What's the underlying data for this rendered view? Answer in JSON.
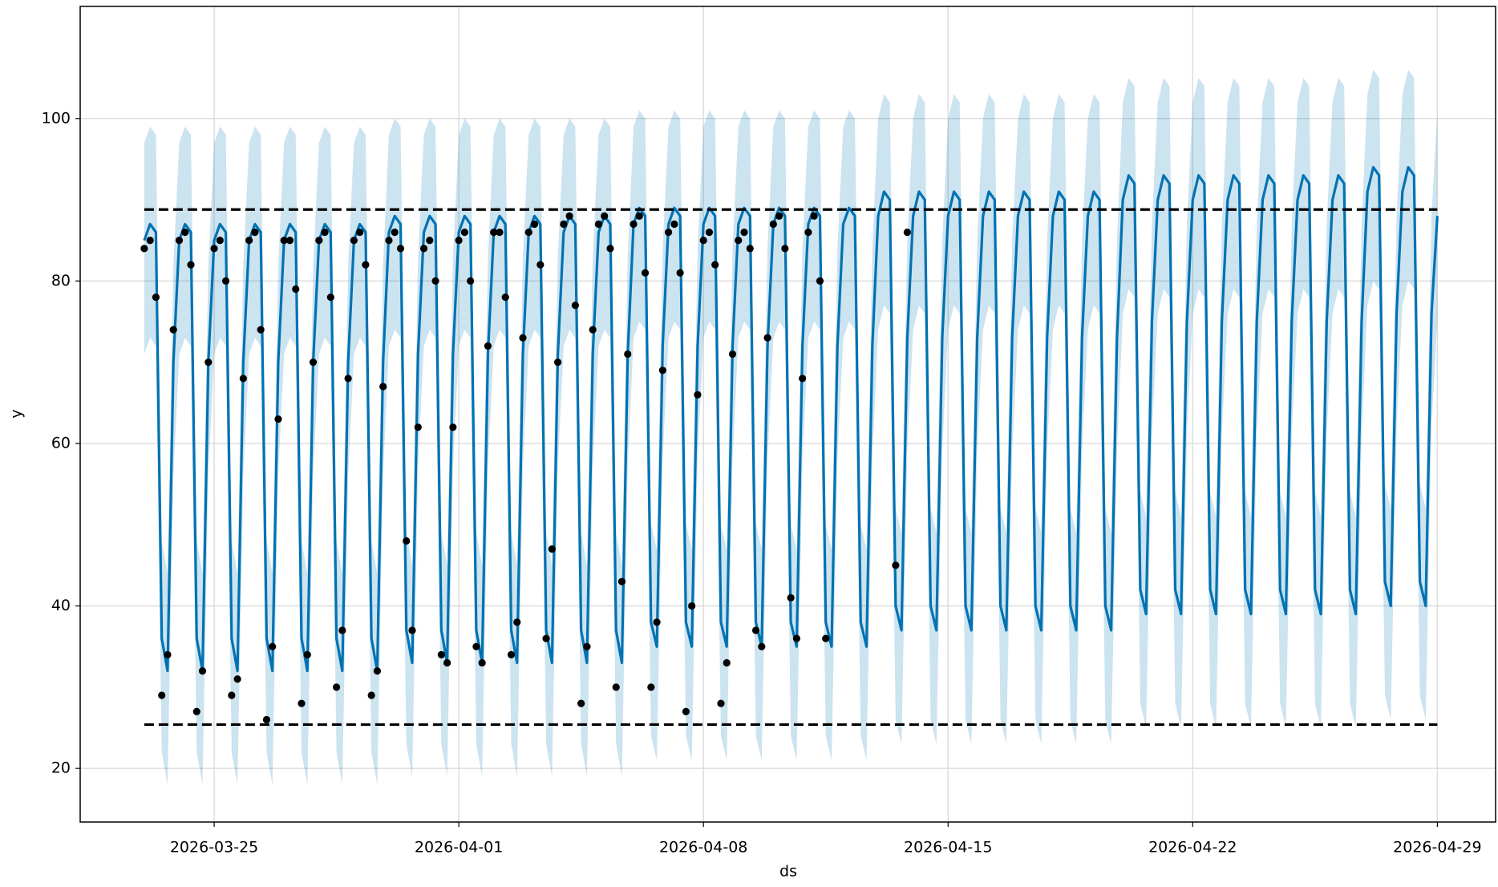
{
  "chart_data": {
    "type": "line",
    "x_label": "ds",
    "y_label": "y",
    "xlim": [
      "2026-03-21 04:00",
      "2026-04-30 16:00"
    ],
    "xticks": [
      "2026-03-25",
      "2026-04-01",
      "2026-04-08",
      "2026-04-15",
      "2026-04-22",
      "2026-04-29"
    ],
    "ylim": [
      13.4,
      113.8
    ],
    "yticks": [
      20,
      40,
      60,
      80,
      100
    ],
    "grid": true,
    "cap": 88.8,
    "floor": 25.4,
    "x": [
      "2026-03-23 00:00",
      "2026-03-23 04:00",
      "2026-03-23 08:00",
      "2026-03-23 12:00",
      "2026-03-23 16:00",
      "2026-03-23 20:00",
      "2026-03-24 00:00",
      "2026-03-24 04:00",
      "2026-03-24 08:00",
      "2026-03-24 12:00",
      "2026-03-24 16:00",
      "2026-03-24 20:00",
      "2026-03-25 00:00",
      "2026-03-25 04:00",
      "2026-03-25 08:00",
      "2026-03-25 12:00",
      "2026-03-25 16:00",
      "2026-03-25 20:00",
      "2026-03-26 00:00",
      "2026-03-26 04:00",
      "2026-03-26 08:00",
      "2026-03-26 12:00",
      "2026-03-26 16:00",
      "2026-03-26 20:00",
      "2026-03-27 00:00",
      "2026-03-27 04:00",
      "2026-03-27 08:00",
      "2026-03-27 12:00",
      "2026-03-27 16:00",
      "2026-03-27 20:00",
      "2026-03-28 00:00",
      "2026-03-28 04:00",
      "2026-03-28 08:00",
      "2026-03-28 12:00",
      "2026-03-28 16:00",
      "2026-03-28 20:00",
      "2026-03-29 00:00",
      "2026-03-29 04:00",
      "2026-03-29 08:00",
      "2026-03-29 12:00",
      "2026-03-29 16:00",
      "2026-03-29 20:00",
      "2026-03-30 00:00",
      "2026-03-30 04:00",
      "2026-03-30 08:00",
      "2026-03-30 12:00",
      "2026-03-30 16:00",
      "2026-03-30 20:00",
      "2026-03-31 00:00",
      "2026-03-31 04:00",
      "2026-03-31 08:00",
      "2026-03-31 12:00",
      "2026-03-31 16:00",
      "2026-03-31 20:00",
      "2026-04-01 00:00",
      "2026-04-01 04:00",
      "2026-04-01 08:00",
      "2026-04-01 12:00",
      "2026-04-01 16:00",
      "2026-04-01 20:00",
      "2026-04-02 00:00",
      "2026-04-02 04:00",
      "2026-04-02 08:00",
      "2026-04-02 12:00",
      "2026-04-02 16:00",
      "2026-04-02 20:00",
      "2026-04-03 00:00",
      "2026-04-03 04:00",
      "2026-04-03 08:00",
      "2026-04-03 12:00",
      "2026-04-03 16:00",
      "2026-04-03 20:00",
      "2026-04-04 00:00",
      "2026-04-04 04:00",
      "2026-04-04 08:00",
      "2026-04-04 12:00",
      "2026-04-04 16:00",
      "2026-04-04 20:00",
      "2026-04-05 00:00",
      "2026-04-05 04:00",
      "2026-04-05 08:00",
      "2026-04-05 12:00",
      "2026-04-05 16:00",
      "2026-04-05 20:00",
      "2026-04-06 00:00",
      "2026-04-06 04:00",
      "2026-04-06 08:00",
      "2026-04-06 12:00",
      "2026-04-06 16:00",
      "2026-04-06 20:00",
      "2026-04-07 00:00",
      "2026-04-07 04:00",
      "2026-04-07 08:00",
      "2026-04-07 12:00",
      "2026-04-07 16:00",
      "2026-04-07 20:00",
      "2026-04-08 00:00",
      "2026-04-08 04:00",
      "2026-04-08 08:00",
      "2026-04-08 12:00",
      "2026-04-08 16:00",
      "2026-04-08 20:00",
      "2026-04-09 00:00",
      "2026-04-09 04:00",
      "2026-04-09 08:00",
      "2026-04-09 12:00",
      "2026-04-09 16:00",
      "2026-04-09 20:00",
      "2026-04-10 00:00",
      "2026-04-10 04:00",
      "2026-04-10 08:00",
      "2026-04-10 12:00",
      "2026-04-10 16:00",
      "2026-04-10 20:00",
      "2026-04-11 00:00",
      "2026-04-11 04:00",
      "2026-04-11 08:00",
      "2026-04-11 12:00",
      "2026-04-11 16:00",
      "2026-04-11 20:00",
      "2026-04-12 00:00",
      "2026-04-12 04:00",
      "2026-04-12 08:00",
      "2026-04-12 12:00",
      "2026-04-12 16:00",
      "2026-04-12 20:00",
      "2026-04-13 00:00",
      "2026-04-13 04:00",
      "2026-04-13 08:00",
      "2026-04-13 12:00",
      "2026-04-13 16:00",
      "2026-04-13 20:00",
      "2026-04-14 00:00",
      "2026-04-14 04:00",
      "2026-04-14 08:00",
      "2026-04-14 12:00",
      "2026-04-14 16:00",
      "2026-04-14 20:00",
      "2026-04-15 00:00",
      "2026-04-15 04:00",
      "2026-04-15 08:00",
      "2026-04-15 12:00",
      "2026-04-15 16:00",
      "2026-04-15 20:00",
      "2026-04-16 00:00",
      "2026-04-16 04:00",
      "2026-04-16 08:00",
      "2026-04-16 12:00",
      "2026-04-16 16:00",
      "2026-04-16 20:00",
      "2026-04-17 00:00",
      "2026-04-17 04:00",
      "2026-04-17 08:00",
      "2026-04-17 12:00",
      "2026-04-17 16:00",
      "2026-04-17 20:00",
      "2026-04-18 00:00",
      "2026-04-18 04:00",
      "2026-04-18 08:00",
      "2026-04-18 12:00",
      "2026-04-18 16:00",
      "2026-04-18 20:00",
      "2026-04-19 00:00",
      "2026-04-19 04:00",
      "2026-04-19 08:00",
      "2026-04-19 12:00",
      "2026-04-19 16:00",
      "2026-04-19 20:00",
      "2026-04-20 00:00",
      "2026-04-20 04:00",
      "2026-04-20 08:00",
      "2026-04-20 12:00",
      "2026-04-20 16:00",
      "2026-04-20 20:00",
      "2026-04-21 00:00",
      "2026-04-21 04:00",
      "2026-04-21 08:00",
      "2026-04-21 12:00",
      "2026-04-21 16:00",
      "2026-04-21 20:00",
      "2026-04-22 00:00",
      "2026-04-22 04:00",
      "2026-04-22 08:00",
      "2026-04-22 12:00",
      "2026-04-22 16:00",
      "2026-04-22 20:00",
      "2026-04-23 00:00",
      "2026-04-23 04:00",
      "2026-04-23 08:00",
      "2026-04-23 12:00",
      "2026-04-23 16:00",
      "2026-04-23 20:00",
      "2026-04-24 00:00",
      "2026-04-24 04:00",
      "2026-04-24 08:00",
      "2026-04-24 12:00",
      "2026-04-24 16:00",
      "2026-04-24 20:00",
      "2026-04-25 00:00",
      "2026-04-25 04:00",
      "2026-04-25 08:00",
      "2026-04-25 12:00",
      "2026-04-25 16:00",
      "2026-04-25 20:00",
      "2026-04-26 00:00",
      "2026-04-26 04:00",
      "2026-04-26 08:00",
      "2026-04-26 12:00",
      "2026-04-26 16:00",
      "2026-04-26 20:00",
      "2026-04-27 00:00",
      "2026-04-27 04:00",
      "2026-04-27 08:00",
      "2026-04-27 12:00",
      "2026-04-27 16:00",
      "2026-04-27 20:00",
      "2026-04-28 00:00",
      "2026-04-28 04:00",
      "2026-04-28 08:00",
      "2026-04-28 12:00",
      "2026-04-28 16:00",
      "2026-04-28 20:00",
      "2026-04-29 00:00"
    ],
    "yhat": {
      "color": "#0072B2",
      "values": [
        85,
        87,
        86,
        36,
        32,
        70,
        85,
        87,
        86,
        36,
        32,
        70,
        85,
        87,
        86,
        36,
        32,
        70,
        85,
        87,
        86,
        36,
        32,
        70,
        85,
        87,
        86,
        36,
        32,
        70,
        85,
        87,
        86,
        36,
        32,
        70,
        85,
        87,
        86,
        36,
        32,
        70,
        86,
        88,
        87,
        37,
        33,
        71,
        86,
        88,
        87,
        37,
        33,
        71,
        86,
        88,
        87,
        37,
        33,
        71,
        86,
        88,
        87,
        37,
        33,
        71,
        86,
        88,
        87,
        37,
        33,
        71,
        86,
        88,
        87,
        37,
        33,
        71,
        86,
        88,
        87,
        37,
        33,
        71,
        87,
        89,
        88,
        38,
        35,
        72,
        87,
        89,
        88,
        38,
        35,
        72,
        87,
        89,
        88,
        38,
        35,
        72,
        87,
        89,
        88,
        38,
        35,
        72,
        87,
        89,
        88,
        38,
        35,
        72,
        87,
        89,
        88,
        38,
        35,
        72,
        87,
        89,
        88,
        38,
        35,
        72,
        88,
        91,
        90,
        40,
        37,
        73,
        88,
        91,
        90,
        40,
        37,
        73,
        88,
        91,
        90,
        40,
        37,
        73,
        88,
        91,
        90,
        40,
        37,
        73,
        88,
        91,
        90,
        40,
        37,
        73,
        88,
        91,
        90,
        40,
        37,
        73,
        88,
        91,
        90,
        40,
        37,
        73,
        90,
        93,
        92,
        42,
        39,
        75,
        90,
        93,
        92,
        42,
        39,
        75,
        90,
        93,
        92,
        42,
        39,
        75,
        90,
        93,
        92,
        42,
        39,
        75,
        90,
        93,
        92,
        42,
        39,
        75,
        90,
        93,
        92,
        42,
        39,
        75,
        90,
        93,
        92,
        42,
        39,
        75,
        91,
        94,
        93,
        43,
        40,
        76,
        91,
        94,
        93,
        43,
        40,
        76,
        88
      ]
    },
    "band": {
      "color": "#0072B2",
      "lower": [
        71,
        73,
        72,
        22,
        18,
        56,
        71,
        73,
        72,
        22,
        18,
        56,
        71,
        73,
        72,
        22,
        18,
        56,
        71,
        73,
        72,
        22,
        18,
        56,
        71,
        73,
        72,
        22,
        18,
        56,
        71,
        73,
        72,
        22,
        18,
        56,
        71,
        73,
        72,
        22,
        18,
        56,
        72,
        74,
        73,
        23,
        19,
        57,
        72,
        74,
        73,
        23,
        19,
        57,
        72,
        74,
        73,
        23,
        19,
        57,
        72,
        74,
        73,
        23,
        19,
        57,
        72,
        74,
        73,
        23,
        19,
        57,
        72,
        74,
        73,
        23,
        19,
        57,
        72,
        74,
        73,
        23,
        19,
        57,
        73,
        75,
        74,
        24,
        21,
        58,
        73,
        75,
        74,
        24,
        21,
        58,
        73,
        75,
        74,
        24,
        21,
        58,
        73,
        75,
        74,
        24,
        21,
        58,
        73,
        75,
        74,
        24,
        21,
        58,
        73,
        75,
        74,
        24,
        21,
        58,
        73,
        75,
        74,
        24,
        21,
        58,
        74,
        77,
        76,
        26,
        23,
        59,
        74,
        77,
        76,
        26,
        23,
        59,
        74,
        77,
        76,
        26,
        23,
        59,
        74,
        77,
        76,
        26,
        23,
        59,
        74,
        77,
        76,
        26,
        23,
        59,
        74,
        77,
        76,
        26,
        23,
        59,
        74,
        77,
        76,
        26,
        23,
        59,
        76,
        79,
        78,
        28,
        25,
        61,
        76,
        79,
        78,
        28,
        25,
        61,
        76,
        79,
        78,
        28,
        25,
        61,
        76,
        79,
        78,
        28,
        25,
        61,
        76,
        79,
        78,
        28,
        25,
        61,
        76,
        79,
        78,
        28,
        25,
        61,
        76,
        79,
        78,
        28,
        25,
        61,
        77,
        80,
        79,
        29,
        26,
        62,
        77,
        80,
        79,
        29,
        26,
        62,
        75
      ],
      "upper": [
        97,
        99,
        98,
        48,
        44,
        82,
        97,
        99,
        98,
        48,
        44,
        82,
        97,
        99,
        98,
        48,
        44,
        82,
        97,
        99,
        98,
        48,
        44,
        82,
        97,
        99,
        98,
        48,
        44,
        82,
        97,
        99,
        98,
        48,
        44,
        82,
        97,
        99,
        98,
        48,
        44,
        82,
        98,
        100,
        99,
        49,
        45,
        83,
        98,
        100,
        99,
        49,
        45,
        83,
        98,
        100,
        99,
        49,
        45,
        83,
        98,
        100,
        99,
        49,
        45,
        83,
        98,
        100,
        99,
        49,
        45,
        83,
        98,
        100,
        99,
        49,
        45,
        83,
        98,
        100,
        99,
        49,
        45,
        83,
        99,
        101,
        100,
        50,
        47,
        84,
        99,
        101,
        100,
        50,
        47,
        84,
        99,
        101,
        100,
        50,
        47,
        84,
        99,
        101,
        100,
        50,
        47,
        84,
        99,
        101,
        100,
        50,
        47,
        84,
        99,
        101,
        100,
        50,
        47,
        84,
        99,
        101,
        100,
        50,
        47,
        84,
        100,
        103,
        102,
        52,
        49,
        85,
        100,
        103,
        102,
        52,
        49,
        85,
        100,
        103,
        102,
        52,
        49,
        85,
        100,
        103,
        102,
        52,
        49,
        85,
        100,
        103,
        102,
        52,
        49,
        85,
        100,
        103,
        102,
        52,
        49,
        85,
        100,
        103,
        102,
        52,
        49,
        85,
        102,
        105,
        104,
        54,
        51,
        87,
        102,
        105,
        104,
        54,
        51,
        87,
        102,
        105,
        104,
        54,
        51,
        87,
        102,
        105,
        104,
        54,
        51,
        87,
        102,
        105,
        104,
        54,
        51,
        87,
        102,
        105,
        104,
        54,
        51,
        87,
        102,
        105,
        104,
        54,
        51,
        87,
        103,
        106,
        105,
        55,
        52,
        88,
        103,
        106,
        105,
        55,
        52,
        88,
        101
      ]
    },
    "points": {
      "color": "#000000",
      "values": [
        84,
        85,
        78,
        29,
        34,
        74,
        85,
        86,
        82,
        27,
        32,
        70,
        84,
        85,
        80,
        29,
        31,
        68,
        85,
        86,
        74,
        26,
        35,
        63,
        85,
        85,
        79,
        28,
        34,
        70,
        85,
        86,
        78,
        30,
        37,
        68,
        85,
        86,
        82,
        29,
        32,
        67,
        85,
        86,
        84,
        48,
        37,
        62,
        84,
        85,
        80,
        34,
        33,
        62,
        85,
        86,
        80,
        35,
        33,
        72,
        86,
        86,
        78,
        34,
        38,
        73,
        86,
        87,
        82,
        36,
        47,
        70,
        87,
        88,
        77,
        28,
        35,
        74,
        87,
        88,
        84,
        30,
        43,
        71,
        87,
        88,
        81,
        30,
        38,
        69,
        86,
        87,
        81,
        27,
        40,
        66,
        85,
        86,
        82,
        28,
        33,
        71,
        85,
        86,
        84,
        37,
        35,
        73,
        87,
        88,
        84,
        41,
        36,
        68,
        86,
        88,
        80,
        36,
        null,
        null,
        null,
        null,
        null,
        null,
        null,
        null,
        null,
        null,
        null,
        45,
        null,
        86,
        null,
        null,
        null,
        null,
        null,
        null,
        null,
        null,
        null,
        null,
        null,
        null,
        null,
        null,
        null,
        null,
        null,
        null,
        null,
        null,
        null,
        null,
        null,
        null,
        null,
        null,
        null,
        null,
        null,
        null,
        null,
        null,
        null,
        null,
        null,
        null,
        null,
        null,
        null,
        null,
        null,
        null,
        null,
        null,
        null,
        null,
        null,
        null,
        null,
        null,
        null,
        null,
        null,
        null,
        null,
        null,
        null,
        null,
        null,
        null,
        null,
        null,
        null,
        null,
        null,
        null,
        null,
        null,
        null,
        null,
        null,
        null,
        null,
        null,
        null,
        null,
        null,
        null,
        null,
        null,
        null,
        null,
        null,
        null,
        null,
        null,
        null,
        null,
        null,
        null,
        null
      ]
    }
  }
}
